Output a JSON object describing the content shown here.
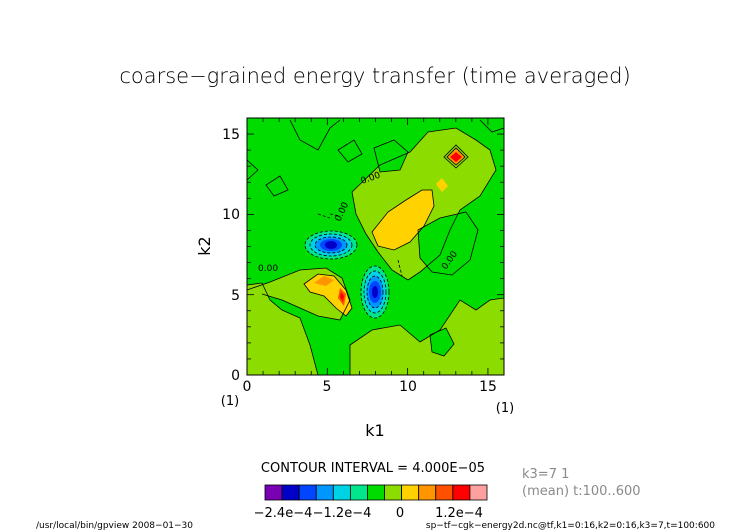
{
  "chart_data": {
    "type": "heatmap",
    "title": "coarse−grained energy transfer (time averaged)",
    "xlabel": "k1",
    "ylabel": "k2",
    "xlim": [
      0,
      16
    ],
    "ylim": [
      0,
      16
    ],
    "x_ticks": [
      "0",
      "5",
      "10",
      "15"
    ],
    "y_ticks": [
      "0",
      "5",
      "10",
      "15"
    ],
    "x_index_label": "(1)",
    "y_index_label": "(1)",
    "contour_labels": [
      "0.00",
      "0.00",
      "0.00",
      "0.00"
    ],
    "contour_interval_text": "CONTOUR INTERVAL = 4.000E−05",
    "colorbar_tick_labels": [
      "−2.4e−4",
      "−1.2e−4",
      "0",
      "1.2e−4"
    ],
    "colorbar_colors": [
      "#7a00b4",
      "#0000c8",
      "#0046ff",
      "#0096ff",
      "#00d2e6",
      "#00e68c",
      "#00dc00",
      "#8cdc00",
      "#ffd200",
      "#ff9600",
      "#ff5000",
      "#ff0000",
      "#ffa0a0"
    ],
    "side_info": [
      "k3=7 1",
      "(mean) t:100..600"
    ],
    "footer_left": "/usr/local/bin/gpview  2008−01−30",
    "footer_right": "sp−tf−cgk−energy2d.nc@tf,k1=0:16,k2=0:16,k3=7,t=100:600",
    "regions": [
      {
        "level": "0..4e-5",
        "color": "#8cdc00",
        "k1": [
          0,
          2
        ],
        "k2": [
          0,
          6
        ]
      },
      {
        "level": "0..4e-5",
        "color": "#8cdc00",
        "k1": [
          8,
          16
        ],
        "k2": [
          0,
          4
        ]
      },
      {
        "level": "0..4e-5",
        "color": "#8cdc00",
        "k1": [
          6,
          14
        ],
        "k2": [
          7,
          15
        ]
      },
      {
        "level": "4e-5..8e-5",
        "color": "#ffd200",
        "k1": [
          4,
          7
        ],
        "k2": [
          3,
          6
        ]
      },
      {
        "level": "4e-5..8e-5",
        "color": "#ffd200",
        "k1": [
          8,
          11
        ],
        "k2": [
          8,
          11
        ]
      },
      {
        "level": ">1.2e-4",
        "color": "#ff0000",
        "k1": [
          13,
          13
        ],
        "k2": [
          13,
          13
        ]
      },
      {
        "level": ">1.2e-4",
        "color": "#ff0000",
        "k1": [
          6,
          6
        ],
        "k2": [
          5,
          6
        ]
      },
      {
        "level": "<-2.4e-4",
        "color": "#0000c8",
        "k1": [
          5,
          5
        ],
        "k2": [
          8,
          8
        ]
      },
      {
        "level": "<-2.4e-4",
        "color": "#0000c8",
        "k1": [
          8,
          8
        ],
        "k2": [
          5,
          5
        ]
      }
    ]
  }
}
